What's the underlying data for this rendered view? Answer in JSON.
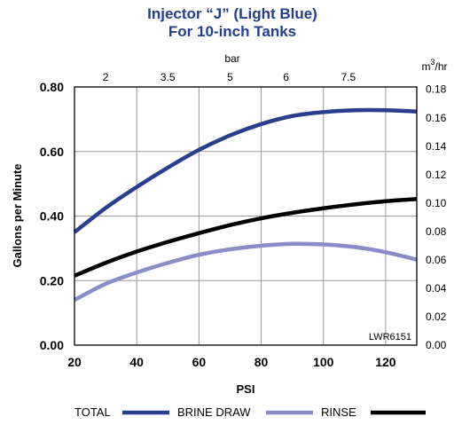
{
  "chart_data": {
    "type": "line",
    "title": "Injector “J” (Light Blue)",
    "subtitle": "For 10-inch Tanks",
    "xlabel": "PSI",
    "ylabel": "Gallons per Minute",
    "x2label": "bar",
    "y2label_base": "m",
    "y2label_sup": "3",
    "y2label_tail": "/hr",
    "xlim": [
      20,
      130
    ],
    "ylim": [
      0,
      0.8
    ],
    "x_ticks": [
      20,
      40,
      60,
      80,
      100,
      120
    ],
    "y_ticks": [
      0.0,
      0.2,
      0.4,
      0.6,
      0.8
    ],
    "y_tick_labels": [
      "0.00",
      "0.20",
      "0.40",
      "0.60",
      "0.80"
    ],
    "x2_ticks": [
      {
        "label": "2",
        "psi": 30
      },
      {
        "label": "3.5",
        "psi": 50
      },
      {
        "label": "5",
        "psi": 70
      },
      {
        "label": "6",
        "psi": 88
      },
      {
        "label": "7.5",
        "psi": 108
      }
    ],
    "y2_ticks": [
      {
        "label": "0.00",
        "gpm": 0.0
      },
      {
        "label": "0.02",
        "gpm": 0.0881
      },
      {
        "label": "0.04",
        "gpm": 0.1761
      },
      {
        "label": "0.06",
        "gpm": 0.2642
      },
      {
        "label": "0.08",
        "gpm": 0.3522
      },
      {
        "label": "0.10",
        "gpm": 0.4403
      },
      {
        "label": "0.12",
        "gpm": 0.5283
      },
      {
        "label": "0.14",
        "gpm": 0.6164
      },
      {
        "label": "0.16",
        "gpm": 0.7044
      },
      {
        "label": "0.18",
        "gpm": 0.7925
      }
    ],
    "grid": true,
    "code_label": "LWR6151",
    "series": [
      {
        "name": "TOTAL",
        "color": "#283f8e",
        "x": [
          20,
          30,
          40,
          50,
          60,
          70,
          80,
          90,
          100,
          110,
          120,
          130
        ],
        "y": [
          0.35,
          0.425,
          0.49,
          0.55,
          0.605,
          0.65,
          0.685,
          0.71,
          0.722,
          0.728,
          0.728,
          0.724
        ]
      },
      {
        "name": "BRINE DRAW",
        "color": "#8a8dc8",
        "x": [
          20,
          30,
          40,
          50,
          60,
          70,
          80,
          90,
          100,
          110,
          120,
          130
        ],
        "y": [
          0.14,
          0.19,
          0.225,
          0.255,
          0.28,
          0.297,
          0.308,
          0.314,
          0.312,
          0.304,
          0.288,
          0.265
        ]
      },
      {
        "name": "RINSE",
        "color": "#000000",
        "x": [
          20,
          30,
          40,
          50,
          60,
          70,
          80,
          90,
          100,
          110,
          120,
          130
        ],
        "y": [
          0.215,
          0.255,
          0.29,
          0.32,
          0.347,
          0.372,
          0.393,
          0.41,
          0.424,
          0.436,
          0.446,
          0.453
        ]
      }
    ]
  }
}
